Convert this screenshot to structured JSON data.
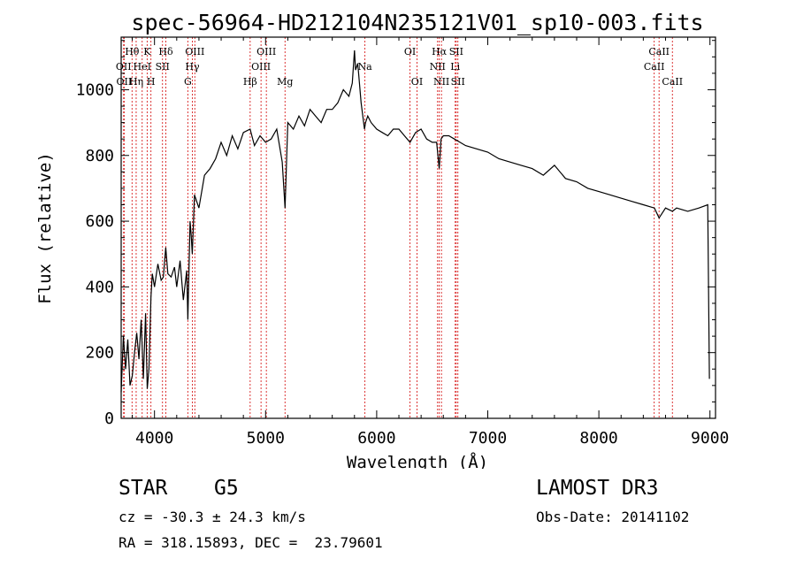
{
  "chart_data": {
    "type": "line",
    "title": "spec-56964-HD212104N235121V01_sp10-003.fits",
    "xlabel": "Wavelength (Å)",
    "ylabel": "Flux (relative)",
    "xlim": [
      3700,
      9050
    ],
    "ylim": [
      0,
      1160
    ],
    "x_ticks": [
      4000,
      5000,
      6000,
      7000,
      8000,
      9000
    ],
    "y_ticks": [
      0,
      200,
      400,
      600,
      800,
      1000
    ],
    "series": [
      {
        "name": "spectrum",
        "x": [
          3700,
          3720,
          3740,
          3760,
          3780,
          3800,
          3820,
          3840,
          3860,
          3880,
          3900,
          3920,
          3935,
          3950,
          3968,
          3980,
          4000,
          4030,
          4060,
          4080,
          4101,
          4120,
          4150,
          4180,
          4200,
          4230,
          4260,
          4290,
          4300,
          4320,
          4330,
          4340,
          4360,
          4400,
          4450,
          4500,
          4550,
          4600,
          4650,
          4700,
          4750,
          4800,
          4861,
          4900,
          4950,
          5000,
          5050,
          5100,
          5150,
          5175,
          5200,
          5250,
          5300,
          5350,
          5400,
          5450,
          5500,
          5550,
          5600,
          5650,
          5700,
          5750,
          5780,
          5800,
          5810,
          5830,
          5860,
          5890,
          5900,
          5920,
          5950,
          6000,
          6050,
          6100,
          6150,
          6200,
          6250,
          6300,
          6350,
          6400,
          6450,
          6500,
          6540,
          6563,
          6580,
          6600,
          6650,
          6700,
          6750,
          6800,
          6900,
          7000,
          7100,
          7200,
          7300,
          7400,
          7500,
          7600,
          7700,
          7800,
          7900,
          8000,
          8100,
          8200,
          8300,
          8400,
          8500,
          8542,
          8600,
          8662,
          8700,
          8800,
          8900,
          8980,
          8995
        ],
        "values": [
          80,
          250,
          150,
          240,
          100,
          130,
          200,
          260,
          180,
          300,
          120,
          320,
          90,
          150,
          370,
          440,
          400,
          470,
          420,
          430,
          520,
          440,
          430,
          460,
          400,
          480,
          360,
          450,
          300,
          600,
          560,
          500,
          680,
          640,
          740,
          760,
          790,
          840,
          800,
          860,
          820,
          870,
          880,
          830,
          860,
          840,
          850,
          880,
          780,
          640,
          900,
          880,
          920,
          890,
          940,
          920,
          900,
          940,
          940,
          960,
          1000,
          980,
          1020,
          1120,
          1060,
          1080,
          960,
          880,
          900,
          920,
          900,
          880,
          870,
          860,
          880,
          880,
          860,
          840,
          870,
          880,
          850,
          840,
          840,
          760,
          850,
          860,
          860,
          850,
          840,
          830,
          820,
          810,
          790,
          780,
          770,
          760,
          740,
          770,
          730,
          720,
          700,
          690,
          680,
          670,
          660,
          650,
          640,
          610,
          640,
          630,
          640,
          630,
          640,
          650,
          120
        ]
      }
    ],
    "lines": [
      {
        "wl": 3722,
        "label": "OII",
        "row": 1
      },
      {
        "wl": 3727,
        "label": "OII",
        "row": 2
      },
      {
        "wl": 3798,
        "label": "Hθ",
        "row": 0
      },
      {
        "wl": 3835,
        "label": "Hη",
        "row": 2
      },
      {
        "wl": 3889,
        "label": "HeI",
        "row": 1
      },
      {
        "wl": 3934,
        "label": "K",
        "row": 0
      },
      {
        "wl": 3968,
        "label": "H",
        "row": 2
      },
      {
        "wl": 4072,
        "label": "SII",
        "row": 1
      },
      {
        "wl": 4102,
        "label": "Hδ",
        "row": 0
      },
      {
        "wl": 4300,
        "label": "G",
        "row": 2
      },
      {
        "wl": 4341,
        "label": "Hγ",
        "row": 1
      },
      {
        "wl": 4363,
        "label": "OIII",
        "row": 0
      },
      {
        "wl": 4861,
        "label": "Hβ",
        "row": 2
      },
      {
        "wl": 4959,
        "label": "OIII",
        "row": 1
      },
      {
        "wl": 5007,
        "label": "OIII",
        "row": 0
      },
      {
        "wl": 5175,
        "label": "Mg",
        "row": 2
      },
      {
        "wl": 5894,
        "label": "Na",
        "row": 1
      },
      {
        "wl": 6300,
        "label": "OI",
        "row": 0
      },
      {
        "wl": 6363,
        "label": "OI",
        "row": 2
      },
      {
        "wl": 6548,
        "label": "NII",
        "row": 1
      },
      {
        "wl": 6563,
        "label": "Hα",
        "row": 0
      },
      {
        "wl": 6583,
        "label": "NII",
        "row": 2
      },
      {
        "wl": 6707,
        "label": "Li",
        "row": 1
      },
      {
        "wl": 6716,
        "label": "SII",
        "row": 0
      },
      {
        "wl": 6731,
        "label": "SII",
        "row": 2
      },
      {
        "wl": 8498,
        "label": "CaII",
        "row": 1
      },
      {
        "wl": 8542,
        "label": "CaII",
        "row": 0
      },
      {
        "wl": 8662,
        "label": "CaII",
        "row": 2
      }
    ]
  },
  "info": {
    "object_class": "STAR",
    "subclass": "G5",
    "survey": "LAMOST DR3",
    "redshift_text": "cz = -30.3 ± 24.3 km/s",
    "obs_date": "Obs-Date: 20141102",
    "coords": "RA = 318.15893, DEC =  23.79601"
  },
  "colors": {
    "line_marker": "#d82020",
    "spectrum": "#000000"
  }
}
